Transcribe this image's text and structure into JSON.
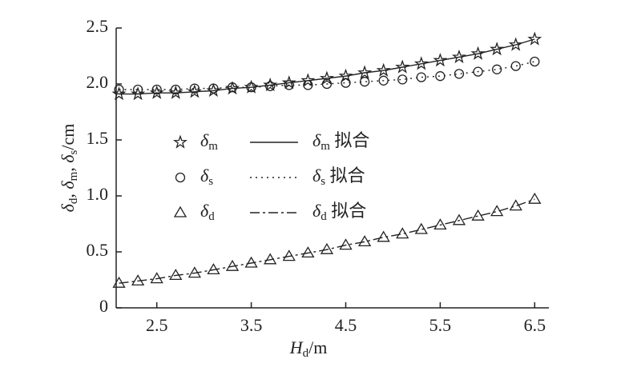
{
  "chart_data": {
    "type": "line",
    "x_label": [
      "H",
      "d",
      "/m"
    ],
    "y_label": [
      "δ",
      "d",
      ", δ",
      "m",
      ", δ",
      "s",
      "/cm"
    ],
    "x": [
      2.1,
      2.3,
      2.5,
      2.7,
      2.9,
      3.1,
      3.3,
      3.5,
      3.7,
      3.9,
      4.1,
      4.3,
      4.5,
      4.7,
      4.9,
      5.1,
      5.3,
      5.5,
      5.7,
      5.9,
      6.1,
      6.3,
      6.5
    ],
    "series": [
      {
        "name": [
          "δ",
          "m"
        ],
        "fit_label": [
          "δ",
          "m",
          " 拟合"
        ],
        "marker": "star",
        "dash": "solid",
        "color": "#222222",
        "values": [
          1.91,
          1.91,
          1.92,
          1.92,
          1.93,
          1.94,
          1.96,
          1.97,
          1.99,
          2.01,
          2.03,
          2.05,
          2.07,
          2.1,
          2.12,
          2.15,
          2.18,
          2.21,
          2.24,
          2.27,
          2.31,
          2.35,
          2.4
        ]
      },
      {
        "name": [
          "δ",
          "s"
        ],
        "fit_label": [
          "δ",
          "s",
          " 拟合"
        ],
        "marker": "circle",
        "dash": "dotted",
        "color": "#222222",
        "values": [
          1.95,
          1.95,
          1.95,
          1.95,
          1.96,
          1.96,
          1.97,
          1.97,
          1.98,
          1.99,
          1.99,
          2.0,
          2.01,
          2.02,
          2.03,
          2.04,
          2.06,
          2.07,
          2.09,
          2.11,
          2.13,
          2.16,
          2.2
        ]
      },
      {
        "name": [
          "δ",
          "d"
        ],
        "fit_label": [
          "δ",
          "d",
          " 拟合"
        ],
        "marker": "triangle",
        "dash": "dashdot",
        "color": "#222222",
        "values": [
          0.22,
          0.24,
          0.26,
          0.29,
          0.31,
          0.34,
          0.37,
          0.4,
          0.43,
          0.46,
          0.49,
          0.52,
          0.56,
          0.59,
          0.63,
          0.66,
          0.7,
          0.74,
          0.78,
          0.82,
          0.86,
          0.91,
          0.97
        ]
      }
    ],
    "xlim": [
      2.07,
      6.65
    ],
    "ylim": [
      0,
      2.5
    ],
    "xticks": [
      2.5,
      3.5,
      4.5,
      5.5,
      6.5
    ],
    "yticks": [
      0,
      0.5,
      {
        "value": 1,
        "label": "1.0"
      },
      1.5,
      {
        "value": 2,
        "label": "2.0"
      },
      2.5
    ]
  }
}
